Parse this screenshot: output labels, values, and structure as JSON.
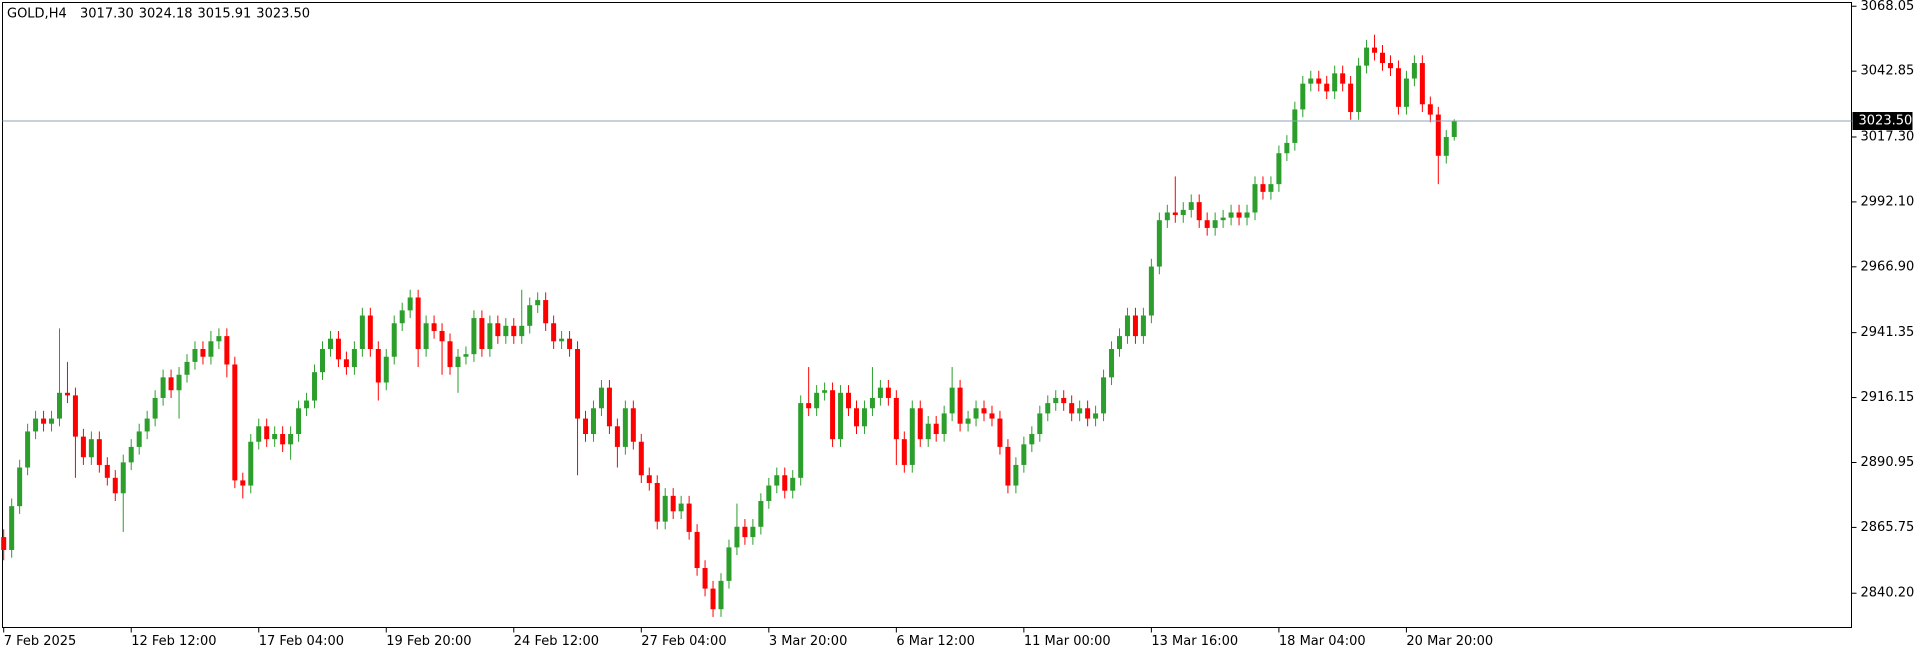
{
  "chart_data": {
    "type": "candlestick",
    "title": "GOLD,H4",
    "ohlc_labels": [
      "3017.30",
      "3024.18",
      "3015.91",
      "3023.50"
    ],
    "up_color": "#2b9e2b",
    "down_color": "#ff0000",
    "price_line_color": "#8fa3b8",
    "categories": [
      "7 Feb 2025",
      null,
      null,
      null,
      null,
      null,
      null,
      null,
      null,
      null,
      null,
      null,
      null,
      null,
      null,
      null,
      "12 Feb 12:00",
      null,
      null,
      null,
      null,
      null,
      null,
      null,
      null,
      null,
      null,
      null,
      null,
      null,
      null,
      null,
      "17 Feb 04:00",
      null,
      null,
      null,
      null,
      null,
      null,
      null,
      null,
      null,
      null,
      null,
      null,
      null,
      null,
      null,
      "19 Feb 20:00",
      null,
      null,
      null,
      null,
      null,
      null,
      null,
      null,
      null,
      null,
      null,
      null,
      null,
      null,
      null,
      "24 Feb 12:00",
      null,
      null,
      null,
      null,
      null,
      null,
      null,
      null,
      null,
      null,
      null,
      null,
      null,
      null,
      null,
      "27 Feb 04:00",
      null,
      null,
      null,
      null,
      null,
      null,
      null,
      null,
      null,
      null,
      null,
      null,
      null,
      null,
      null,
      "3 Mar 20:00",
      null,
      null,
      null,
      null,
      null,
      null,
      null,
      null,
      null,
      null,
      null,
      null,
      null,
      null,
      null,
      "6 Mar 12:00",
      null,
      null,
      null,
      null,
      null,
      null,
      null,
      null,
      null,
      null,
      null,
      null,
      null,
      null,
      null,
      "11 Mar 00:00",
      null,
      null,
      null,
      null,
      null,
      null,
      null,
      null,
      null,
      null,
      null,
      null,
      null,
      null,
      null,
      "13 Mar 16:00",
      null,
      null,
      null,
      null,
      null,
      null,
      null,
      null,
      null,
      null,
      null,
      null,
      null,
      null,
      null,
      "18 Mar 04:00",
      null,
      null,
      null,
      null,
      null,
      null,
      null,
      null,
      null,
      null,
      null,
      null,
      null,
      null,
      null,
      "20 Mar 20:00",
      null,
      null,
      null,
      null,
      null,
      null
    ],
    "open": [
      2862,
      2857,
      2874,
      2889,
      2903,
      2908,
      2906,
      2908,
      2918,
      2917,
      2901,
      2893,
      2900,
      2890,
      2885,
      2879,
      2891,
      2897,
      2903,
      2908,
      2916,
      2924,
      2919,
      2925,
      2930,
      2935,
      2932,
      2938,
      2940,
      2929,
      2884,
      2882,
      2899,
      2905,
      2900,
      2902,
      2898,
      2902,
      2912,
      2915,
      2926,
      2935,
      2939,
      2931,
      2928,
      2935,
      2948,
      2935,
      2922,
      2932,
      2945,
      2950,
      2955,
      2935,
      2945,
      2942,
      2938,
      2928,
      2932,
      2933,
      2947,
      2935,
      2945,
      2940,
      2944,
      2940,
      2944,
      2952,
      2954,
      2945,
      2938,
      2939,
      2935,
      2908,
      2902,
      2912,
      2920,
      2905,
      2897,
      2912,
      2899,
      2886,
      2883,
      2868,
      2878,
      2872,
      2875,
      2864,
      2850,
      2842,
      2834,
      2845,
      2858,
      2866,
      2862,
      2866,
      2876,
      2882,
      2886,
      2880,
      2885,
      2914,
      2912,
      2918,
      2919,
      2900,
      2918,
      2912,
      2905,
      2912,
      2916,
      2920,
      2916,
      2900,
      2890,
      2912,
      2900,
      2906,
      2902,
      2910,
      2920,
      2906,
      2908,
      2912,
      2910,
      2908,
      2897,
      2882,
      2890,
      2898,
      2902,
      2910,
      2914,
      2916,
      2914,
      2910,
      2912,
      2908,
      2910,
      2924,
      2935,
      2940,
      2948,
      2940,
      2948,
      2967,
      2985,
      2988,
      2987,
      2989,
      2992,
      2985,
      2982,
      2985,
      2986,
      2988,
      2986,
      2988,
      2999,
      2996,
      2999,
      3011,
      3015,
      3028,
      3038,
      3040,
      3038,
      3035,
      3042,
      3038,
      3027,
      3045,
      3052,
      3050,
      3046,
      3044,
      3029,
      3040,
      3046,
      3030,
      3026,
      3010,
      3017.3
    ],
    "high": [
      2865,
      2877,
      2892,
      2906,
      2911,
      2911,
      2911,
      2943,
      2930,
      2920,
      2904,
      2903,
      2903,
      2893,
      2888,
      2894,
      2900,
      2906,
      2911,
      2919,
      2927,
      2927,
      2928,
      2933,
      2938,
      2938,
      2942,
      2943,
      2943,
      2932,
      2887,
      2902,
      2908,
      2908,
      2905,
      2905,
      2905,
      2915,
      2918,
      2929,
      2938,
      2942,
      2942,
      2934,
      2938,
      2951,
      2951,
      2938,
      2935,
      2948,
      2953,
      2958,
      2958,
      2948,
      2948,
      2945,
      2941,
      2935,
      2936,
      2950,
      2950,
      2948,
      2948,
      2947,
      2947,
      2958,
      2955,
      2957,
      2957,
      2948,
      2942,
      2942,
      2938,
      2911,
      2915,
      2923,
      2923,
      2908,
      2915,
      2915,
      2902,
      2889,
      2886,
      2881,
      2881,
      2878,
      2878,
      2867,
      2853,
      2845,
      2848,
      2861,
      2875,
      2869,
      2869,
      2879,
      2885,
      2889,
      2889,
      2888,
      2917,
      2928,
      2921,
      2922,
      2922,
      2921,
      2921,
      2915,
      2915,
      2928,
      2923,
      2923,
      2919,
      2903,
      2915,
      2915,
      2909,
      2909,
      2913,
      2928,
      2923,
      2911,
      2915,
      2915,
      2913,
      2911,
      2900,
      2893,
      2901,
      2905,
      2913,
      2917,
      2919,
      2919,
      2917,
      2915,
      2915,
      2913,
      2927,
      2938,
      2943,
      2951,
      2951,
      2951,
      2970,
      2988,
      2991,
      3002,
      2992,
      2995,
      2995,
      2988,
      2988,
      2989,
      2991,
      2991,
      2991,
      3002,
      3002,
      3002,
      3014,
      3018,
      3031,
      3041,
      3043,
      3043,
      3041,
      3045,
      3045,
      3041,
      3048,
      3055,
      3057,
      3053,
      3049,
      3047,
      3043,
      3049,
      3049,
      3033,
      3029,
      3020,
      3024.18
    ],
    "low": [
      2853,
      2854,
      2871,
      2886,
      2900,
      2903,
      2903,
      2905,
      2914,
      2885,
      2890,
      2890,
      2887,
      2882,
      2876,
      2864,
      2888,
      2894,
      2900,
      2905,
      2913,
      2916,
      2908,
      2922,
      2927,
      2929,
      2929,
      2935,
      2924,
      2881,
      2877,
      2879,
      2896,
      2897,
      2897,
      2895,
      2892,
      2899,
      2909,
      2912,
      2923,
      2932,
      2928,
      2925,
      2925,
      2932,
      2932,
      2915,
      2919,
      2929,
      2942,
      2947,
      2928,
      2932,
      2939,
      2925,
      2925,
      2918,
      2929,
      2930,
      2932,
      2932,
      2937,
      2937,
      2937,
      2937,
      2941,
      2949,
      2942,
      2935,
      2935,
      2932,
      2886,
      2899,
      2899,
      2909,
      2902,
      2889,
      2894,
      2896,
      2883,
      2880,
      2865,
      2865,
      2869,
      2869,
      2861,
      2847,
      2839,
      2831,
      2831,
      2842,
      2855,
      2859,
      2859,
      2863,
      2873,
      2879,
      2877,
      2877,
      2882,
      2909,
      2909,
      2915,
      2897,
      2897,
      2909,
      2902,
      2902,
      2909,
      2913,
      2913,
      2890,
      2887,
      2887,
      2897,
      2897,
      2899,
      2899,
      2907,
      2903,
      2903,
      2905,
      2907,
      2905,
      2894,
      2879,
      2879,
      2887,
      2895,
      2899,
      2907,
      2911,
      2911,
      2907,
      2907,
      2905,
      2905,
      2907,
      2921,
      2932,
      2937,
      2937,
      2937,
      2945,
      2964,
      2982,
      2984,
      2984,
      2986,
      2982,
      2979,
      2979,
      2982,
      2983,
      2983,
      2983,
      2985,
      2993,
      2993,
      2996,
      3008,
      3012,
      3025,
      3035,
      3035,
      3032,
      3032,
      3035,
      3024,
      3024,
      3042,
      3047,
      3043,
      3041,
      3026,
      3026,
      3037,
      3027,
      3023,
      2999,
      3007,
      3015.91
    ],
    "close": [
      2857,
      2874,
      2889,
      2903,
      2908,
      2906,
      2908,
      2918,
      2917,
      2901,
      2893,
      2900,
      2890,
      2885,
      2879,
      2891,
      2897,
      2903,
      2908,
      2916,
      2924,
      2919,
      2925,
      2930,
      2935,
      2932,
      2938,
      2940,
      2929,
      2884,
      2882,
      2899,
      2905,
      2900,
      2902,
      2898,
      2902,
      2912,
      2915,
      2926,
      2935,
      2939,
      2931,
      2928,
      2935,
      2948,
      2935,
      2922,
      2932,
      2945,
      2950,
      2955,
      2935,
      2945,
      2942,
      2938,
      2928,
      2932,
      2933,
      2947,
      2935,
      2945,
      2940,
      2944,
      2940,
      2944,
      2952,
      2954,
      2945,
      2938,
      2939,
      2935,
      2908,
      2902,
      2912,
      2920,
      2905,
      2897,
      2912,
      2899,
      2886,
      2883,
      2868,
      2878,
      2872,
      2875,
      2864,
      2850,
      2842,
      2834,
      2845,
      2858,
      2866,
      2862,
      2866,
      2876,
      2882,
      2886,
      2880,
      2885,
      2914,
      2912,
      2918,
      2919,
      2900,
      2918,
      2912,
      2905,
      2912,
      2916,
      2920,
      2916,
      2900,
      2890,
      2912,
      2900,
      2906,
      2902,
      2910,
      2920,
      2906,
      2908,
      2912,
      2910,
      2908,
      2897,
      2882,
      2890,
      2898,
      2902,
      2910,
      2914,
      2916,
      2914,
      2910,
      2912,
      2908,
      2910,
      2924,
      2935,
      2940,
      2948,
      2940,
      2948,
      2967,
      2985,
      2988,
      2987,
      2989,
      2992,
      2985,
      2982,
      2985,
      2986,
      2988,
      2986,
      2988,
      2999,
      2996,
      2999,
      3011,
      3015,
      3028,
      3038,
      3040,
      3038,
      3035,
      3042,
      3038,
      3027,
      3045,
      3052,
      3050,
      3046,
      3044,
      3029,
      3040,
      3046,
      3030,
      3026,
      3010,
      3017.3,
      3023.5
    ],
    "ylim": [
      2826.9,
      3069.5
    ],
    "yticks": [
      {
        "value": 2840.2,
        "label": "2840.20"
      },
      2865.75,
      2890.95,
      2916.15,
      2941.35,
      {
        "value": 2966.9,
        "label": "2966.90"
      },
      {
        "value": 2992.1,
        "label": "2992.10"
      },
      {
        "value": 3017.3,
        "label": "3017.30"
      },
      3042.85,
      3068.05
    ],
    "current_price": {
      "value": 3023.5,
      "label": "3023.50"
    }
  }
}
